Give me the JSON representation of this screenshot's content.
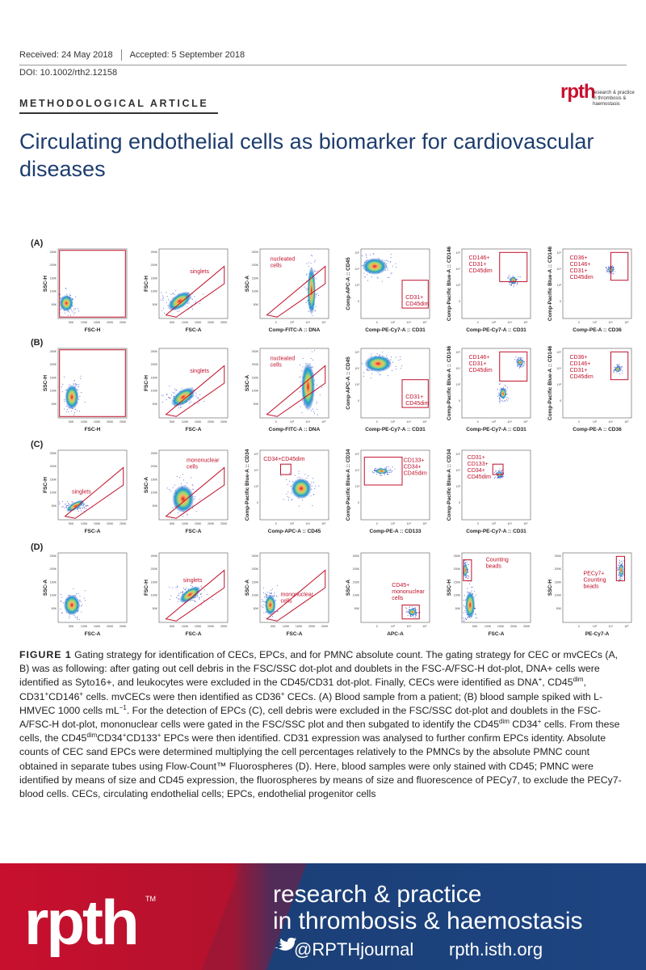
{
  "header": {
    "received": "Received: 24 May 2018",
    "accepted": "Accepted: 5 September 2018",
    "doi": "DOI: 10.1002/rth2.12158",
    "section": "METHODOLOGICAL ARTICLE",
    "logo": "rpth",
    "logo_sub": [
      "research & practice",
      "in thrombosis & haemostasis"
    ]
  },
  "title": "Circulating endothelial cells as biomarker for cardiovascular diseases",
  "figure": {
    "linear_ticks": [
      "50K",
      "100K",
      "150K",
      "200K",
      "250K"
    ],
    "log_ticks": [
      "0",
      "10³",
      "10⁴",
      "10⁵"
    ],
    "panels": [
      {
        "label": "(A)",
        "plots": [
          {
            "x": "FSC-H",
            "y": "SSC-H",
            "xscale": "linear",
            "yscale": "linear"
          },
          {
            "x": "FSC-A",
            "y": "FSC-H",
            "xscale": "linear",
            "yscale": "linear",
            "gate": [
              "singlets"
            ]
          },
          {
            "x": "Comp-FITC-A :: DNA",
            "y": "SSC-A",
            "xscale": "log",
            "yscale": "linear",
            "gate": [
              "nucleated",
              "cells"
            ]
          },
          {
            "x": "Comp-PE-Cy7-A :: CD31",
            "y": "Comp-APC-A :: CD45",
            "xscale": "log",
            "yscale": "log",
            "gate": [
              "CD31+",
              "CD45dim"
            ]
          },
          {
            "x": "Comp-PE-Cy7-A :: CD31",
            "y": "Comp-Pacific Blue-A :: CD146",
            "xscale": "log",
            "yscale": "log",
            "gate": [
              "CD146+",
              "CD31+",
              "CD45dim"
            ]
          },
          {
            "x": "Comp-PE-A :: CD36",
            "y": "Comp-Pacific Blue-A :: CD146",
            "xscale": "log",
            "yscale": "log",
            "gate": [
              "CD36+",
              "CD146+",
              "CD31+",
              "CD45dim"
            ]
          }
        ]
      },
      {
        "label": "(B)",
        "plots": [
          {
            "x": "FSC-H",
            "y": "SSC-H",
            "xscale": "linear",
            "yscale": "linear"
          },
          {
            "x": "FSC-A",
            "y": "FSC-H",
            "xscale": "linear",
            "yscale": "linear",
            "gate": [
              "singlets"
            ]
          },
          {
            "x": "Comp-FITC-A :: DNA",
            "y": "SSC-A",
            "xscale": "log",
            "yscale": "linear",
            "gate": [
              "nucleated",
              "cells"
            ]
          },
          {
            "x": "Comp-PE-Cy7-A :: CD31",
            "y": "Comp-APC-A :: CD45",
            "xscale": "log",
            "yscale": "log",
            "gate": [
              "CD31+",
              "CD45dim"
            ]
          },
          {
            "x": "Comp-PE-Cy7-A :: CD31",
            "y": "Comp-Pacific Blue-A :: CD146",
            "xscale": "log",
            "yscale": "log",
            "gate": [
              "CD146+",
              "CD31+",
              "CD45dim"
            ]
          },
          {
            "x": "Comp-PE-A :: CD36",
            "y": "Comp-Pacific Blue-A :: CD146",
            "xscale": "log",
            "yscale": "log",
            "gate": [
              "CD36+",
              "CD146+",
              "CD31+",
              "CD45dim"
            ]
          }
        ]
      },
      {
        "label": "(C)",
        "plots": [
          {
            "x": "FSC-A",
            "y": "FSC-H",
            "xscale": "linear",
            "yscale": "linear",
            "gate": [
              "singlets"
            ]
          },
          {
            "x": "FSC-A",
            "y": "SSC-A",
            "xscale": "linear",
            "yscale": "linear",
            "gate": [
              "mononuclear",
              "cells"
            ]
          },
          {
            "x": "Comp-APC-A :: CD45",
            "y": "Comp-Pacific Blue-A :: CD34",
            "xscale": "log",
            "yscale": "log",
            "gate": [
              "CD34+CD45dim"
            ]
          },
          {
            "x": "Comp-PE-A :: CD133",
            "y": "Comp-Pacific Blue-A :: CD34",
            "xscale": "log",
            "yscale": "log",
            "gate": [
              "CD133+",
              "CD34+",
              "CD45dim"
            ]
          },
          {
            "x": "Comp-PE-Cy7-A :: CD31",
            "y": "Comp-Pacific Blue-A :: CD34",
            "xscale": "log",
            "yscale": "log",
            "gate": [
              "CD31+",
              "CD133+",
              "CD34+",
              "CD45dim"
            ]
          }
        ]
      },
      {
        "label": "(D)",
        "plots": [
          {
            "x": "FSC-A",
            "y": "SSC-A",
            "xscale": "linear",
            "yscale": "linear"
          },
          {
            "x": "FSC-A",
            "y": "FSC-H",
            "xscale": "linear",
            "yscale": "linear",
            "gate": [
              "singlets"
            ]
          },
          {
            "x": "FSC-A",
            "y": "SSC-A",
            "xscale": "linear",
            "yscale": "linear",
            "gate": [
              "mononuclear",
              "cells"
            ]
          },
          {
            "x": "APC-A",
            "y": "SSC-A",
            "xscale": "log",
            "yscale": "linear",
            "gate": [
              "CD45+",
              "mononuclear",
              "cells"
            ]
          },
          {
            "x": "FSC-A",
            "y": "SSC-H",
            "xscale": "linear",
            "yscale": "linear",
            "gate": [
              "Counting",
              "beads"
            ]
          },
          {
            "x": "PE-Cy7-A",
            "y": "SSC-H",
            "xscale": "log",
            "yscale": "linear",
            "gate": [
              "PECy7+",
              "Counting",
              "beads"
            ]
          }
        ]
      }
    ],
    "caption": {
      "label": "FIGURE 1",
      "parts": [
        {
          "text": " Gating strategy for identification of CECs, EPCs, and for PMNC absolute count. The gating strategy for CEC or mvCECs (A, B) was as following: after gating out cell debris in the FSC/SSC dot-plot and doublets in the FSC-A/FSC-H dot-plot, DNA+ cells were identified as Syto16+, and leukocytes were excluded in the CD45/CD31 dot-plot. Finally, CECs were identified as DNA"
        },
        {
          "sup": "+"
        },
        {
          "text": ", CD45"
        },
        {
          "sup": "dim"
        },
        {
          "text": ", CD31"
        },
        {
          "sup": "+"
        },
        {
          "text": "CD146"
        },
        {
          "sup": "+"
        },
        {
          "text": " cells. mvCECs were then identified as CD36"
        },
        {
          "sup": "+"
        },
        {
          "text": " CECs. (A) Blood sample from a patient; (B) blood sample spiked with L-HMVEC 1000 cells mL"
        },
        {
          "sup": "−1"
        },
        {
          "text": ". For the detection of EPCs (C), cell debris were excluded in the FSC/SSC dot-plot and doublets in the FSC-A/FSC-H dot-plot, mononuclear cells were gated in the FSC/SSC plot and then subgated to identify the CD45"
        },
        {
          "sup": "dim"
        },
        {
          "text": " CD34"
        },
        {
          "sup": "+"
        },
        {
          "text": " cells. From these cells, the CD45"
        },
        {
          "sup": "dim"
        },
        {
          "text": "CD34"
        },
        {
          "sup": "+"
        },
        {
          "text": "CD133"
        },
        {
          "sup": "+"
        },
        {
          "text": " EPCs were then identified. CD31 expression was analysed to further confirm EPCs identity. Absolute counts of CEC sand EPCs were determined multiplying the cell percentages relatively to the PMNCs by the absolute PMNC count obtained in separate tubes using Flow-Count™ Fluorospheres (D). Here, blood samples were only stained with CD45; PMNC were identified by means of size and CD45 expression, the fluorospheres by means of size and fluorescence of PECy7, to exclude the PECy7-blood cells. CECs, circulating endothelial cells; EPCs, endothelial progenitor cells"
        }
      ]
    }
  },
  "footer": {
    "logo": "rpth",
    "tm": "TM",
    "lines": [
      "research & practice",
      "in thrombosis & haemostasis"
    ],
    "twitter": "@RPTHjournal",
    "url": "rpth.isth.org"
  }
}
